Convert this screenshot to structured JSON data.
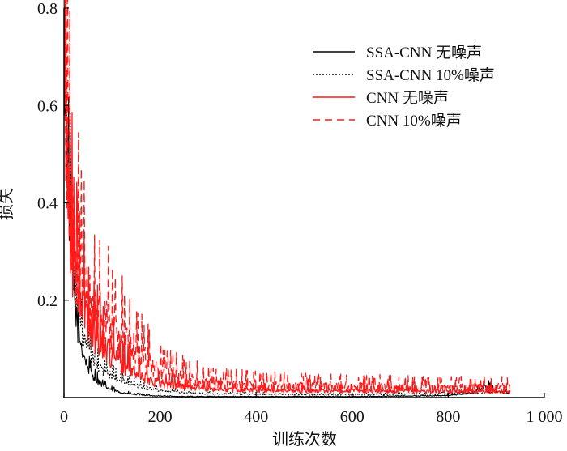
{
  "chart_data": {
    "type": "line",
    "xlabel": "训练次数",
    "ylabel": "损失",
    "xlim": [
      0,
      1000
    ],
    "ylim": [
      0,
      0.8
    ],
    "x_ticks": [
      0,
      200,
      400,
      600,
      800,
      1000
    ],
    "x_tick_labels": [
      "0",
      "200",
      "400",
      "600",
      "800",
      "1 000"
    ],
    "y_ticks": [
      0.2,
      0.4,
      0.6,
      0.8
    ],
    "y_tick_labels": [
      "0.2",
      "0.4",
      "0.6",
      "0.8"
    ],
    "grid": false,
    "legend_position": "top-right",
    "series": [
      {
        "name": "SSA-CNN 无噪声",
        "color": "#000000",
        "dash": "solid",
        "x": [
          0,
          5,
          10,
          15,
          20,
          25,
          30,
          40,
          50,
          60,
          70,
          80,
          100,
          120,
          150,
          180,
          200,
          250,
          300,
          400,
          500,
          600,
          700,
          800,
          850,
          870,
          880,
          900,
          930
        ],
        "y": [
          0.75,
          0.55,
          0.4,
          0.3,
          0.22,
          0.17,
          0.13,
          0.09,
          0.06,
          0.045,
          0.035,
          0.025,
          0.015,
          0.01,
          0.006,
          0.004,
          0.003,
          0.002,
          0.002,
          0.002,
          0.002,
          0.002,
          0.003,
          0.004,
          0.01,
          0.02,
          0.025,
          0.012,
          0.008
        ]
      },
      {
        "name": "SSA-CNN 10%噪声",
        "color": "#000000",
        "dash": "dotted",
        "x": [
          0,
          5,
          10,
          15,
          20,
          25,
          30,
          40,
          50,
          60,
          70,
          80,
          100,
          120,
          150,
          180,
          200,
          250,
          300,
          400,
          500,
          600,
          700,
          800,
          850,
          900,
          930
        ],
        "y": [
          0.73,
          0.58,
          0.45,
          0.34,
          0.26,
          0.2,
          0.16,
          0.12,
          0.1,
          0.08,
          0.065,
          0.055,
          0.045,
          0.035,
          0.025,
          0.018,
          0.015,
          0.01,
          0.008,
          0.007,
          0.006,
          0.006,
          0.007,
          0.008,
          0.01,
          0.012,
          0.01
        ]
      },
      {
        "name": "CNN 无噪声",
        "color": "#ff1a1a",
        "dash": "solid",
        "x": [
          0,
          5,
          10,
          15,
          20,
          30,
          40,
          50,
          60,
          80,
          100,
          120,
          150,
          180,
          200,
          250,
          300,
          350,
          400,
          500,
          600,
          700,
          800,
          900,
          930
        ],
        "y": [
          0.74,
          0.55,
          0.42,
          0.33,
          0.27,
          0.22,
          0.19,
          0.16,
          0.14,
          0.11,
          0.085,
          0.07,
          0.05,
          0.035,
          0.03,
          0.022,
          0.018,
          0.016,
          0.015,
          0.014,
          0.014,
          0.013,
          0.013,
          0.013,
          0.012
        ]
      },
      {
        "name": "CNN 10%噪声",
        "color": "#ff1a1a",
        "dash": "dashed",
        "x": [
          0,
          5,
          10,
          15,
          20,
          30,
          40,
          50,
          60,
          80,
          100,
          120,
          150,
          180,
          200,
          250,
          300,
          350,
          400,
          500,
          600,
          700,
          800,
          900,
          930
        ],
        "y": [
          0.76,
          0.58,
          0.45,
          0.37,
          0.31,
          0.26,
          0.23,
          0.2,
          0.18,
          0.16,
          0.14,
          0.12,
          0.095,
          0.07,
          0.055,
          0.04,
          0.032,
          0.028,
          0.026,
          0.024,
          0.023,
          0.022,
          0.021,
          0.022,
          0.02
        ]
      }
    ]
  }
}
